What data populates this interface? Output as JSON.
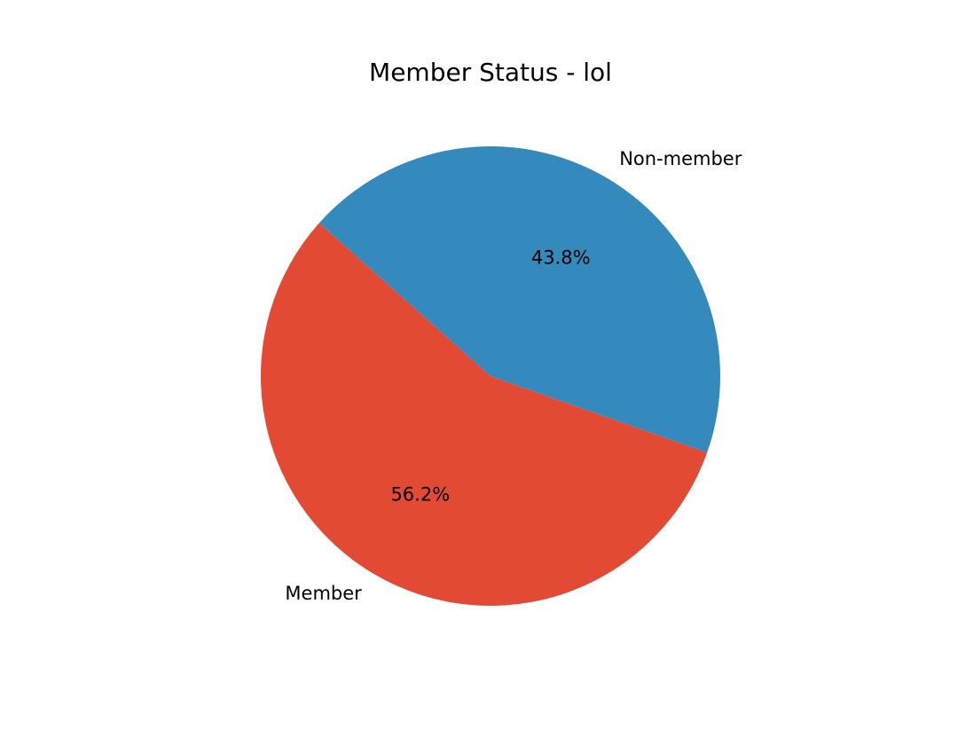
{
  "chart_data": {
    "type": "pie",
    "title": "Member Status - lol",
    "slices": [
      {
        "label": "Member",
        "value": 56.2,
        "percent_label": "56.2%",
        "color": "#E24A33"
      },
      {
        "label": "Non-member",
        "value": 43.8,
        "percent_label": "43.8%",
        "color": "#348ABD"
      }
    ],
    "legend": "none"
  }
}
